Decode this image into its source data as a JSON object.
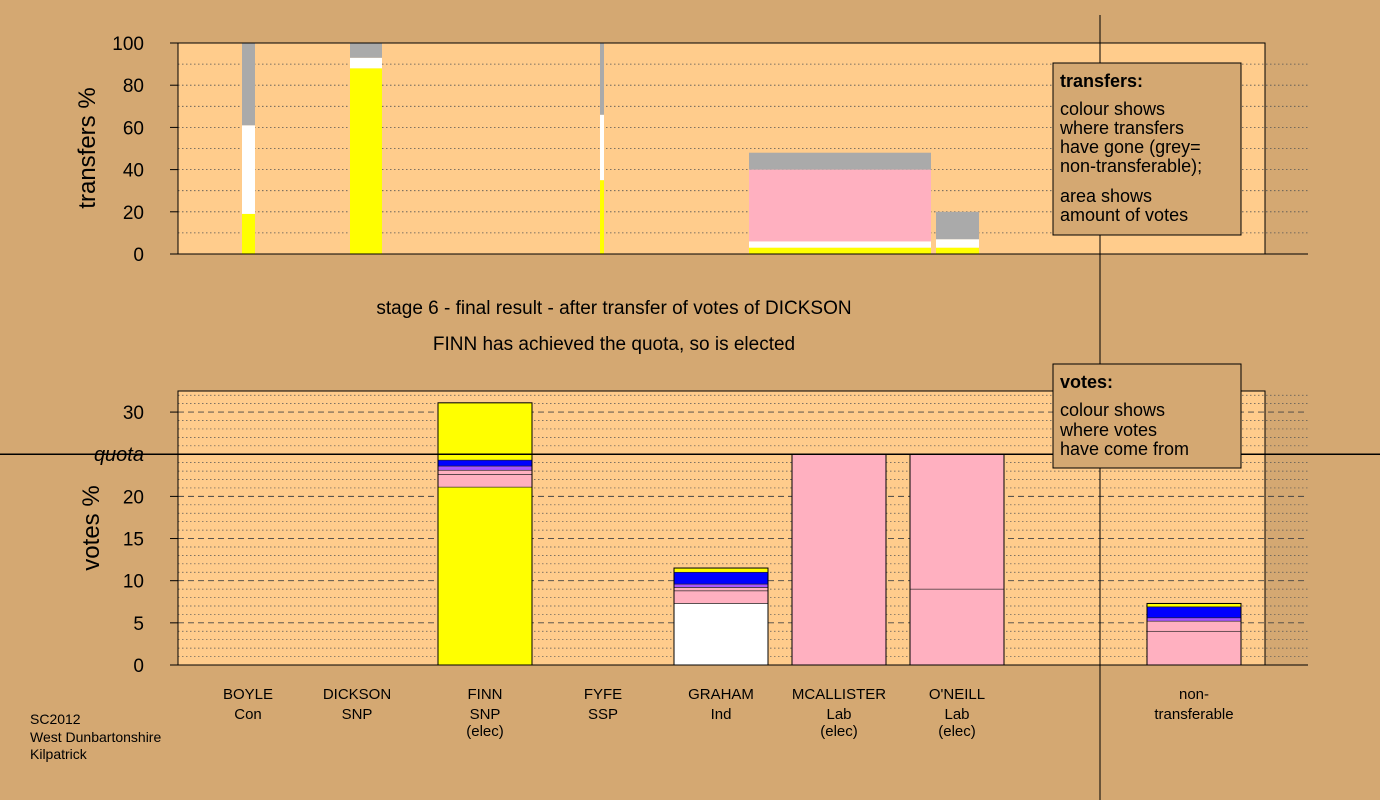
{
  "chart_data": [
    {
      "type": "bar",
      "stacked": true,
      "ylabel": "transfers %",
      "ylim": [
        0,
        100
      ],
      "yticks": [
        0,
        20,
        40,
        60,
        80,
        100
      ],
      "grid": true,
      "legend": {
        "placement": "top-right",
        "title": "transfers:",
        "lines1": [
          "colour shows",
          "where transfers",
          "have gone (grey=",
          "non-transferable);"
        ],
        "lines2": [
          "area shows",
          "amount of votes"
        ]
      },
      "bars": [
        {
          "category": "BOYLE",
          "segments": [
            {
              "color": "#ffff00",
              "value": 19
            },
            {
              "color": "#ffffff",
              "value": 42
            },
            {
              "color": "#aaaaaa",
              "value": 39
            }
          ]
        },
        {
          "category": "DICKSON",
          "segments": [
            {
              "color": "#ffff00",
              "value": 88
            },
            {
              "color": "#ffffff",
              "value": 5
            },
            {
              "color": "#aaaaaa",
              "value": 7
            }
          ]
        },
        {
          "category": "FYFE",
          "segments": [
            {
              "color": "#ffff00",
              "value": 35
            },
            {
              "color": "#ffffff",
              "value": 31
            },
            {
              "color": "#aaaaaa",
              "value": 34
            }
          ]
        },
        {
          "category": "MCALLISTER",
          "segments": [
            {
              "color": "#ffff00",
              "value": 3
            },
            {
              "color": "#ffffff",
              "value": 3
            },
            {
              "color": "#ffb0c0",
              "value": 34
            },
            {
              "color": "#aaaaaa",
              "value": 8
            }
          ]
        },
        {
          "category": "O'NEILL",
          "segments": [
            {
              "color": "#ffff00",
              "value": 3
            },
            {
              "color": "#ffffff",
              "value": 4
            },
            {
              "color": "#aaaaaa",
              "value": 13
            }
          ]
        }
      ]
    },
    {
      "type": "bar",
      "stacked": true,
      "ylabel": "votes %",
      "ylim": [
        0,
        32.5
      ],
      "yticks": [
        0,
        5,
        10,
        15,
        20,
        25,
        30
      ],
      "quota": 25,
      "quota_label": "quota",
      "grid": true,
      "legend": {
        "placement": "top-right",
        "title": "votes:",
        "lines1": [
          "colour shows",
          "where votes",
          "have come from"
        ]
      },
      "categories": [
        {
          "name": "BOYLE",
          "party": "Con",
          "status": ""
        },
        {
          "name": "DICKSON",
          "party": "SNP",
          "status": ""
        },
        {
          "name": "FINN",
          "party": "SNP",
          "status": "(elec)"
        },
        {
          "name": "FYFE",
          "party": "SSP",
          "status": ""
        },
        {
          "name": "GRAHAM",
          "party": "Ind",
          "status": ""
        },
        {
          "name": "MCALLISTER",
          "party": "Lab",
          "status": "(elec)"
        },
        {
          "name": "O'NEILL",
          "party": "Lab",
          "status": "(elec)"
        },
        {
          "name": "non-",
          "party": "transferable",
          "status": ""
        }
      ],
      "bars": [
        {
          "category": "FINN",
          "segments": [
            {
              "color": "#ffff00",
              "value": 21.1
            },
            {
              "color": "#ffb0c0",
              "value": 1.5
            },
            {
              "color": "#ffb0c0",
              "value": 0.5
            },
            {
              "color": "#aa55ff",
              "value": 0.5
            },
            {
              "color": "#0000ff",
              "value": 0.7
            },
            {
              "color": "#ffff00",
              "value": 6.8
            }
          ]
        },
        {
          "category": "GRAHAM",
          "segments": [
            {
              "color": "#ffffff",
              "value": 7.3
            },
            {
              "color": "#ffb0c0",
              "value": 1.5
            },
            {
              "color": "#ffb0c0",
              "value": 0.4
            },
            {
              "color": "#aa55ff",
              "value": 0.4
            },
            {
              "color": "#0000ff",
              "value": 1.4
            },
            {
              "color": "#ffff00",
              "value": 0.5
            }
          ]
        },
        {
          "category": "MCALLISTER",
          "segments": [
            {
              "color": "#ffb0c0",
              "value": 25
            }
          ]
        },
        {
          "category": "O'NEILL",
          "segments": [
            {
              "color": "#ffb0c0",
              "value": 9
            },
            {
              "color": "#ffb0c0",
              "value": 16
            }
          ]
        },
        {
          "category": "non-",
          "segments": [
            {
              "color": "#ffb0c0",
              "value": 4
            },
            {
              "color": "#ffb0c0",
              "value": 1.2
            },
            {
              "color": "#aa55ff",
              "value": 0.4
            },
            {
              "color": "#0000ff",
              "value": 1.3
            },
            {
              "color": "#ffff00",
              "value": 0.4
            }
          ]
        }
      ]
    }
  ],
  "caption": {
    "line1": "stage 6 - final result - after transfer of votes of DICKSON",
    "line2": "FINN has achieved the quota, so is elected"
  },
  "footer": {
    "line1": "SC2012",
    "line2": "West Dunbartonshire",
    "line3": "Kilpatrick"
  },
  "colors": {
    "background": "#d4a872",
    "plot": "#ffcc8c",
    "snp": "#ffff00",
    "lab": "#ffb0c0",
    "con": "#0000ff",
    "ssp": "#aa55ff",
    "ind": "#ffffff",
    "nontransferable": "#aaaaaa"
  }
}
